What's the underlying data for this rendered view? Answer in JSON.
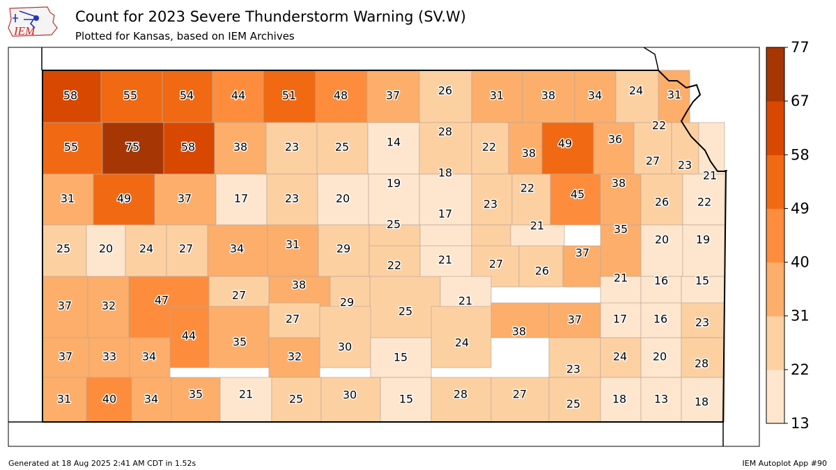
{
  "header": {
    "title": "Count for 2023 Severe Thunderstorm Warning (SV.W)",
    "subtitle": "Plotted for Kansas, based on IEM Archives",
    "logo_text": "IEM"
  },
  "footer": {
    "generated": "Generated at 18 Aug 2025 2:41 AM CDT in 1.52s",
    "app": "IEM Autoplot App #90"
  },
  "colorbar": {
    "bins": [
      13,
      22,
      31,
      40,
      49,
      58,
      67,
      77
    ],
    "tick_labels": [
      "13",
      "22",
      "31",
      "40",
      "49",
      "58",
      "67",
      "77"
    ],
    "colors": [
      "#fee6ce",
      "#fdd0a2",
      "#fdae6b",
      "#fd8d3c",
      "#f16913",
      "#d94801",
      "#a63603"
    ]
  },
  "counties": [
    {
      "value": 58
    },
    {
      "value": 55
    },
    {
      "value": 54
    },
    {
      "value": 44
    },
    {
      "value": 51
    },
    {
      "value": 48
    },
    {
      "value": 37
    },
    {
      "value": 26
    },
    {
      "value": 31
    },
    {
      "value": 38
    },
    {
      "value": 34
    },
    {
      "value": 24
    },
    {
      "value": 31
    },
    {
      "value": 55
    },
    {
      "value": 75
    },
    {
      "value": 58
    },
    {
      "value": 38
    },
    {
      "value": 23
    },
    {
      "value": 25
    },
    {
      "value": 14
    },
    {
      "value": 28
    },
    {
      "value": 22
    },
    {
      "value": 38
    },
    {
      "value": 49
    },
    {
      "value": 36
    },
    {
      "value": 22
    },
    {
      "value": 27
    },
    {
      "value": 23
    },
    {
      "value": 21
    },
    {
      "value": 31
    },
    {
      "value": 49
    },
    {
      "value": 37
    },
    {
      "value": 17
    },
    {
      "value": 23
    },
    {
      "value": 20
    },
    {
      "value": 19
    },
    {
      "value": 18
    },
    {
      "value": 23
    },
    {
      "value": 22
    },
    {
      "value": 45
    },
    {
      "value": 38
    },
    {
      "value": 26
    },
    {
      "value": 22
    },
    {
      "value": 25
    },
    {
      "value": 20
    },
    {
      "value": 24
    },
    {
      "value": 27
    },
    {
      "value": 34
    },
    {
      "value": 31
    },
    {
      "value": 29
    },
    {
      "value": 25
    },
    {
      "value": 17
    },
    {
      "value": 21
    },
    {
      "value": 35
    },
    {
      "value": 20
    },
    {
      "value": 19
    },
    {
      "value": 22
    },
    {
      "value": 21
    },
    {
      "value": 27
    },
    {
      "value": 26
    },
    {
      "value": 37
    },
    {
      "value": 37
    },
    {
      "value": 32
    },
    {
      "value": 47
    },
    {
      "value": 27
    },
    {
      "value": 38
    },
    {
      "value": 29
    },
    {
      "value": 25
    },
    {
      "value": 21
    },
    {
      "value": 21
    },
    {
      "value": 16
    },
    {
      "value": 15
    },
    {
      "value": 27
    },
    {
      "value": 38
    },
    {
      "value": 37
    },
    {
      "value": 17
    },
    {
      "value": 16
    },
    {
      "value": 23
    },
    {
      "value": 44
    },
    {
      "value": 35
    },
    {
      "value": 30
    },
    {
      "value": 24
    },
    {
      "value": 37
    },
    {
      "value": 33
    },
    {
      "value": 34
    },
    {
      "value": 32
    },
    {
      "value": 15
    },
    {
      "value": 23
    },
    {
      "value": 24
    },
    {
      "value": 20
    },
    {
      "value": 28
    },
    {
      "value": 31
    },
    {
      "value": 40
    },
    {
      "value": 34
    },
    {
      "value": 35
    },
    {
      "value": 21
    },
    {
      "value": 25
    },
    {
      "value": 30
    },
    {
      "value": 15
    },
    {
      "value": 28
    },
    {
      "value": 27
    },
    {
      "value": 25
    },
    {
      "value": 18
    },
    {
      "value": 13
    },
    {
      "value": 18
    }
  ]
}
